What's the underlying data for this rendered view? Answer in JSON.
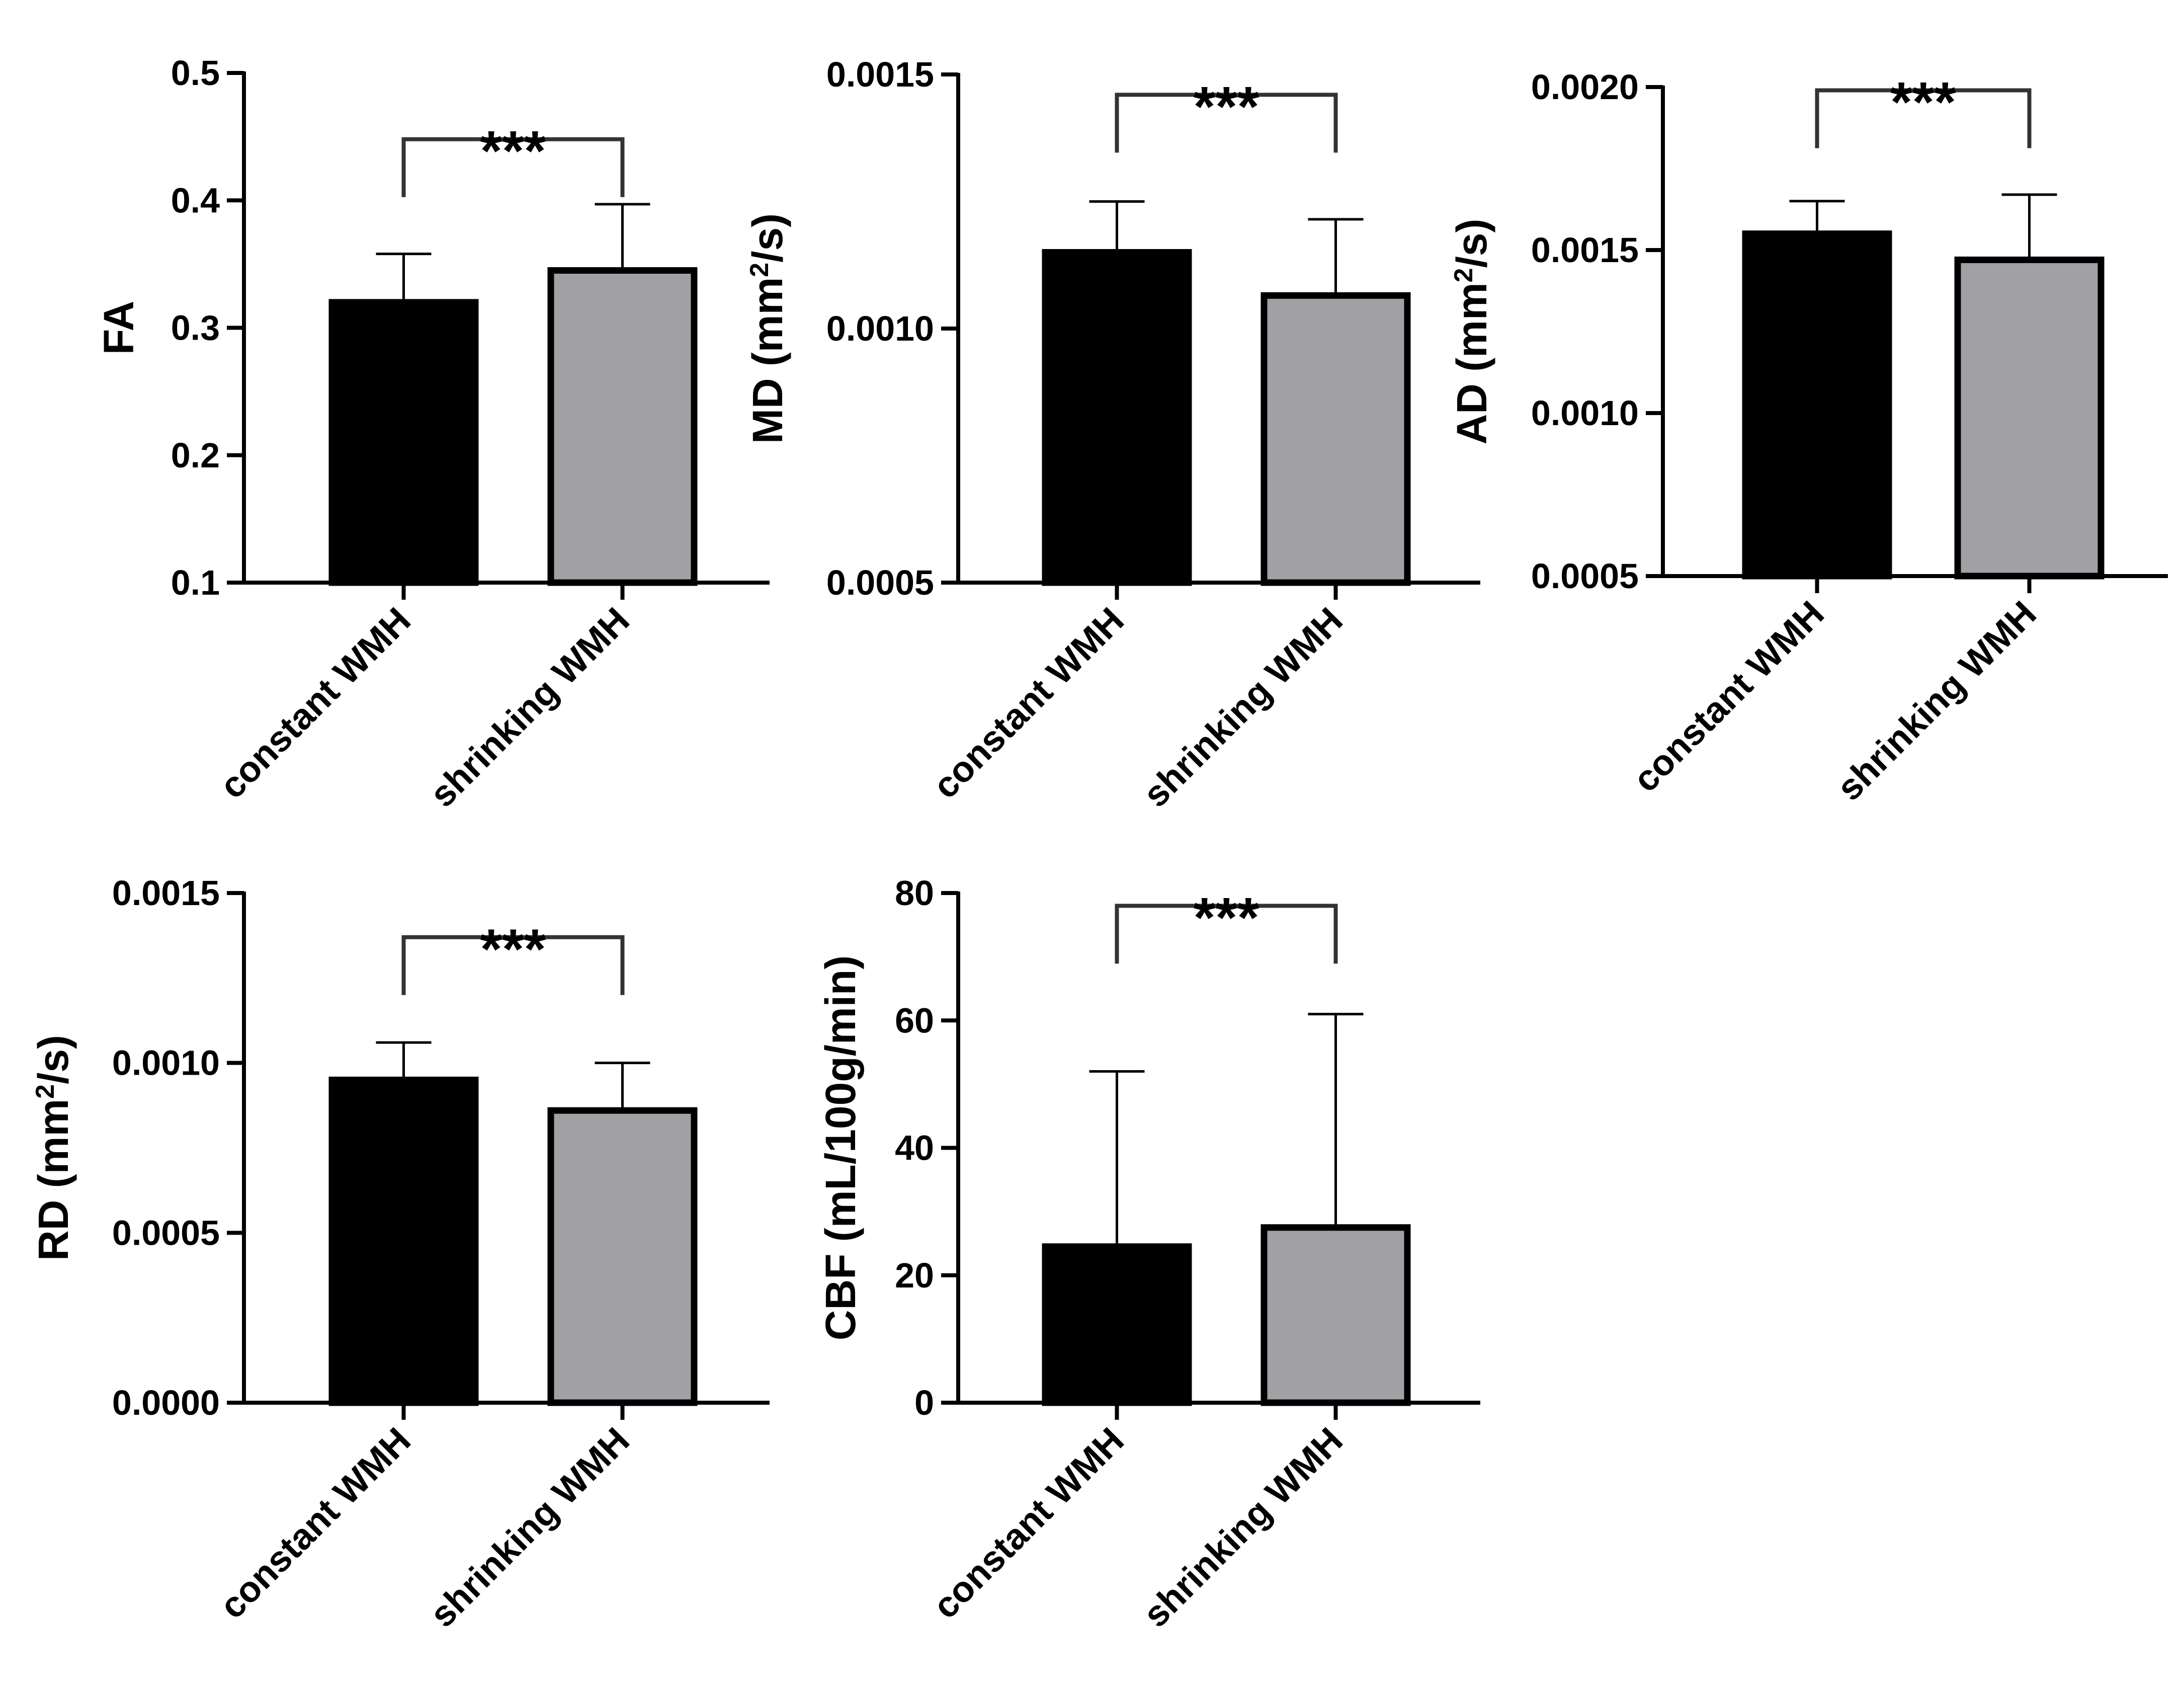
{
  "figure": {
    "colors": {
      "constant": "#000000",
      "shrinking": "#a1a0a5",
      "axis": "#000000",
      "errorbar": "#000000",
      "bracket": "#333333"
    }
  },
  "chart_data": [
    {
      "type": "bar",
      "title": "",
      "ylabel": "FA",
      "ylabel_sup": "",
      "ylabel_tail": "",
      "categories": [
        "constant WMH",
        "shrinking WMH"
      ],
      "values": [
        0.32,
        0.345
      ],
      "error_upper": [
        0.358,
        0.397
      ],
      "ylim": [
        0.1,
        0.5
      ],
      "yticks": [
        0.1,
        0.2,
        0.3,
        0.4,
        0.5
      ],
      "ytick_labels": [
        "0.1",
        "0.2",
        "0.3",
        "0.4",
        "0.5"
      ],
      "significance": "***",
      "bracket_level": 0.448
    },
    {
      "type": "bar",
      "title": "",
      "ylabel": "MD (mm",
      "ylabel_sup": "2",
      "ylabel_tail": "/s)",
      "categories": [
        "constant WMH",
        "shrinking WMH"
      ],
      "values": [
        0.00115,
        0.001065
      ],
      "error_upper": [
        0.00125,
        0.001215
      ],
      "ylim": [
        0.0005,
        0.0015
      ],
      "yticks": [
        0.0005,
        0.001,
        0.0015
      ],
      "ytick_labels": [
        "0.0005",
        "0.0010",
        "0.0015"
      ],
      "significance": "***",
      "bracket_level": 0.00146
    },
    {
      "type": "bar",
      "title": "",
      "ylabel": "AD (mm",
      "ylabel_sup": "2",
      "ylabel_tail": "/s)",
      "categories": [
        "constant WMH",
        "shrinking WMH"
      ],
      "values": [
        0.00155,
        0.00147
      ],
      "error_upper": [
        0.00165,
        0.00167
      ],
      "ylim": [
        0.0005,
        0.002
      ],
      "yticks": [
        0.0005,
        0.001,
        0.0015,
        0.002
      ],
      "ytick_labels": [
        "0.0005",
        "0.0010",
        "0.0015",
        "0.0020"
      ],
      "significance": "***",
      "bracket_level": 0.00199
    },
    {
      "type": "bar",
      "title": "",
      "ylabel": "RD (mm",
      "ylabel_sup": "2",
      "ylabel_tail": "/s)",
      "categories": [
        "constant WMH",
        "shrinking WMH"
      ],
      "values": [
        0.00095,
        0.00086
      ],
      "error_upper": [
        0.00106,
        0.001
      ],
      "ylim": [
        0,
        0.0015
      ],
      "yticks": [
        0,
        0.0005,
        0.001,
        0.0015
      ],
      "ytick_labels": [
        "0.0000",
        "0.0005",
        "0.0010",
        "0.0015"
      ],
      "significance": "***",
      "bracket_level": 0.00137
    },
    {
      "type": "bar",
      "title": "",
      "ylabel": "CBF (mL/100g/min)",
      "ylabel_sup": "",
      "ylabel_tail": "",
      "categories": [
        "constant WMH",
        "shrinking WMH"
      ],
      "values": [
        24.5,
        27.5
      ],
      "error_upper": [
        52,
        61
      ],
      "ylim": [
        0,
        80
      ],
      "yticks": [
        0,
        20,
        40,
        60,
        80
      ],
      "ytick_labels": [
        "0",
        "20",
        "40",
        "60",
        "80"
      ],
      "significance": "***",
      "bracket_level": 78
    }
  ]
}
